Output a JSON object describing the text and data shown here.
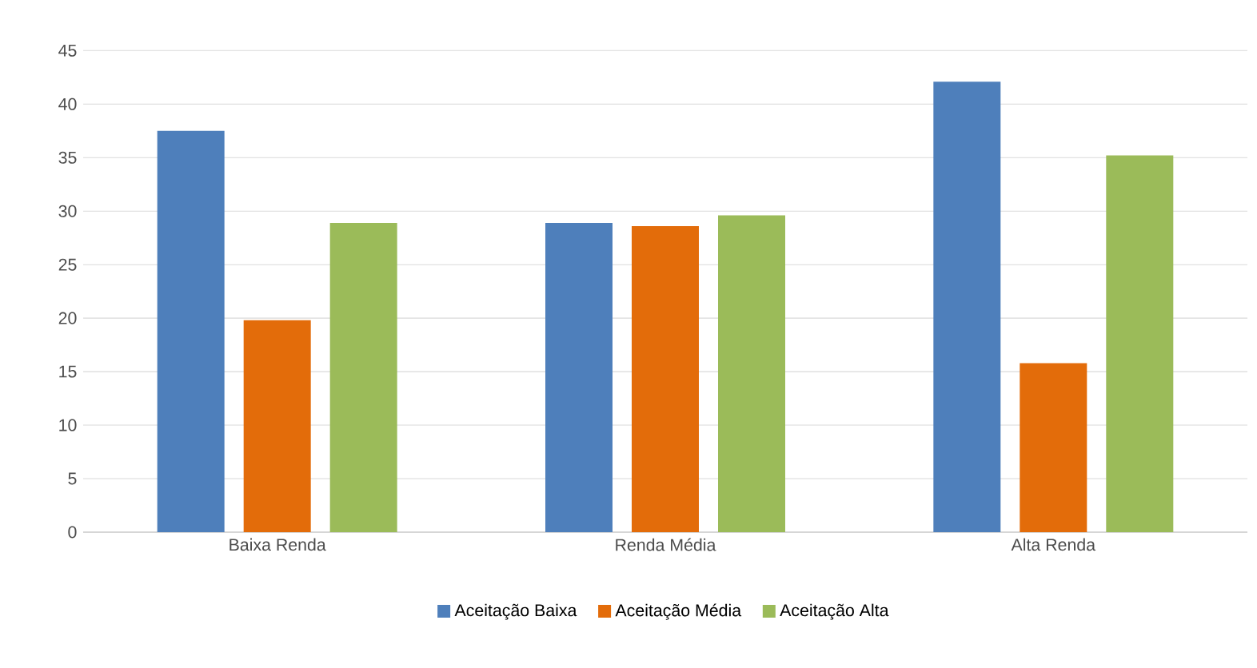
{
  "chart_data": {
    "type": "bar",
    "categories": [
      "Baixa Renda",
      "Renda Média",
      "Alta Renda"
    ],
    "series": [
      {
        "name": "Aceitação Baixa",
        "color": "#4e7fbb",
        "values": [
          37.5,
          28.9,
          42.1
        ]
      },
      {
        "name": "Aceitação Média",
        "color": "#e36c0a",
        "values": [
          19.8,
          28.6,
          15.8
        ]
      },
      {
        "name": "Aceitação Alta",
        "color": "#9bbb59",
        "values": [
          28.9,
          29.6,
          35.2
        ]
      }
    ],
    "ylim": [
      0,
      45
    ],
    "yticks": [
      0,
      5,
      10,
      15,
      20,
      25,
      30,
      35,
      40,
      45
    ],
    "grid": "y",
    "legend": "bottom"
  }
}
